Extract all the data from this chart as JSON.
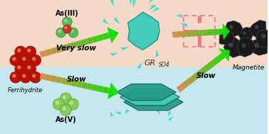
{
  "bg_top": "#f5d9c8",
  "bg_bottom": "#c5e8ee",
  "ferrihydrite_color": "#bb1100",
  "as3_center_color": "#cc3322",
  "as3_outer_color": "#55bb55",
  "as5_color": "#88cc55",
  "magnetite_color": "#1a1a1a",
  "gr_color_dark": "#229988",
  "gr_color_light": "#44ccbb",
  "gr_dispersed_color": "#44ddcc",
  "cross_color": "#ee7788",
  "title_label": "GR",
  "title_sub": "SO4",
  "label_ferrihydrite": "Ferrihydrite",
  "label_magnetite": "Magnetite",
  "label_as3": "As(III)",
  "label_as5": "As(V)",
  "label_very_slow": "Very slow",
  "label_slow1": "Slow",
  "label_slow2": "Slow",
  "label_fontsize": 7.5,
  "sub_fontsize": 5.5
}
